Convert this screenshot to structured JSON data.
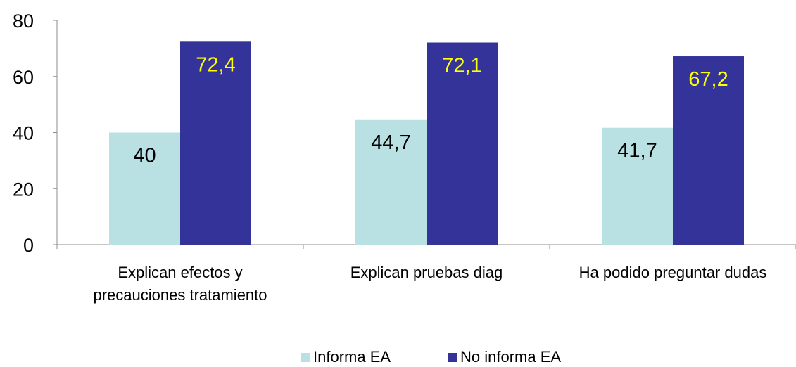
{
  "chart_data": {
    "type": "bar",
    "categories": [
      [
        "Explican efectos y",
        "precauciones tratamiento"
      ],
      [
        "Explican pruebas diag"
      ],
      [
        "Ha podido preguntar dudas"
      ]
    ],
    "series": [
      {
        "name": "Informa EA",
        "values": [
          40,
          44.7,
          41.7
        ],
        "labels": [
          "40",
          "44,7",
          "41,7"
        ],
        "color": "#b9e1e3",
        "label_color": "#000000"
      },
      {
        "name": "No informa EA",
        "values": [
          72.4,
          72.1,
          67.2
        ],
        "labels": [
          "72,4",
          "72,1",
          "67,2"
        ],
        "color": "#333399",
        "label_color": "#ffff00"
      }
    ],
    "ylim": [
      0,
      80
    ],
    "yticks": [
      0,
      20,
      40,
      60,
      80
    ],
    "grid": false,
    "legend": "bottom"
  }
}
